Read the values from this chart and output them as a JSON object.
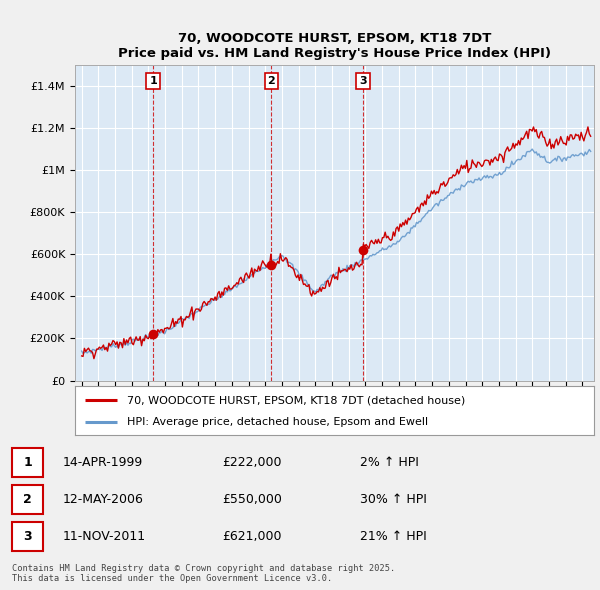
{
  "title": "70, WOODCOTE HURST, EPSOM, KT18 7DT",
  "subtitle": "Price paid vs. HM Land Registry's House Price Index (HPI)",
  "ylim": [
    0,
    1500000
  ],
  "yticks": [
    0,
    200000,
    400000,
    600000,
    800000,
    1000000,
    1200000,
    1400000
  ],
  "ytick_labels": [
    "£0",
    "£200K",
    "£400K",
    "£600K",
    "£800K",
    "£1M",
    "£1.2M",
    "£1.4M"
  ],
  "background_color": "#f0f0f0",
  "plot_bg_color": "#dce9f5",
  "grid_color": "#ffffff",
  "sale_color": "#cc0000",
  "hpi_color": "#6699cc",
  "purchases": [
    {
      "num": 1,
      "date_label": "14-APR-1999",
      "price": 222000,
      "pct": "2%",
      "x": 1999.28
    },
    {
      "num": 2,
      "date_label": "12-MAY-2006",
      "price": 550000,
      "pct": "30%",
      "x": 2006.36
    },
    {
      "num": 3,
      "date_label": "11-NOV-2011",
      "price": 621000,
      "pct": "21%",
      "x": 2011.86
    }
  ],
  "legend_sale_label": "70, WOODCOTE HURST, EPSOM, KT18 7DT (detached house)",
  "legend_hpi_label": "HPI: Average price, detached house, Epsom and Ewell",
  "footnote": "Contains HM Land Registry data © Crown copyright and database right 2025.\nThis data is licensed under the Open Government Licence v3.0.",
  "table_rows": [
    [
      "1",
      "14-APR-1999",
      "£222,000",
      "2% ↑ HPI"
    ],
    [
      "2",
      "12-MAY-2006",
      "£550,000",
      "30% ↑ HPI"
    ],
    [
      "3",
      "11-NOV-2011",
      "£621,000",
      "21% ↑ HPI"
    ]
  ],
  "xlim_left": 1994.6,
  "xlim_right": 2025.7
}
